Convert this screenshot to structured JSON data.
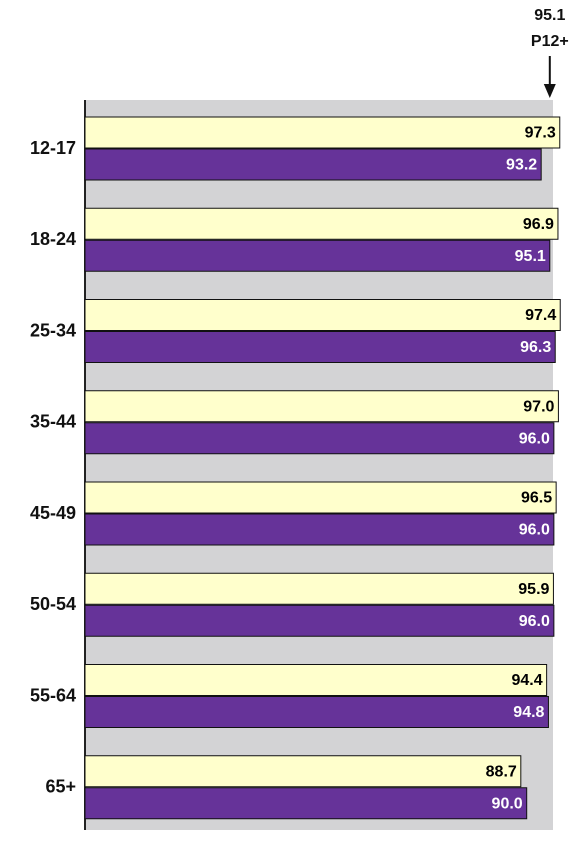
{
  "chart_data": {
    "type": "hbar",
    "categories": [
      "12-17",
      "18-24",
      "25-34",
      "35-44",
      "45-49",
      "50-54",
      "55-64",
      "65+"
    ],
    "series": [
      {
        "color": "#ffffcc",
        "values": [
          97.3,
          96.9,
          97.4,
          97.0,
          96.5,
          95.9,
          94.4,
          88.7
        ],
        "value_labels": [
          "97.3",
          "96.9",
          "97.4",
          "97.0",
          "96.5",
          "95.9",
          "94.4",
          "88.7"
        ]
      },
      {
        "color": "#663399",
        "values": [
          93.2,
          95.1,
          96.3,
          96.0,
          96.0,
          96.0,
          94.8,
          90.0
        ],
        "value_labels": [
          "93.2",
          "95.1",
          "96.3",
          "96.0",
          "96.0",
          "96.0",
          "94.8",
          "90.0"
        ]
      }
    ],
    "xlim": [
      -7.5,
      100
    ],
    "reference": {
      "value": 95.1,
      "label": "P12+"
    }
  }
}
